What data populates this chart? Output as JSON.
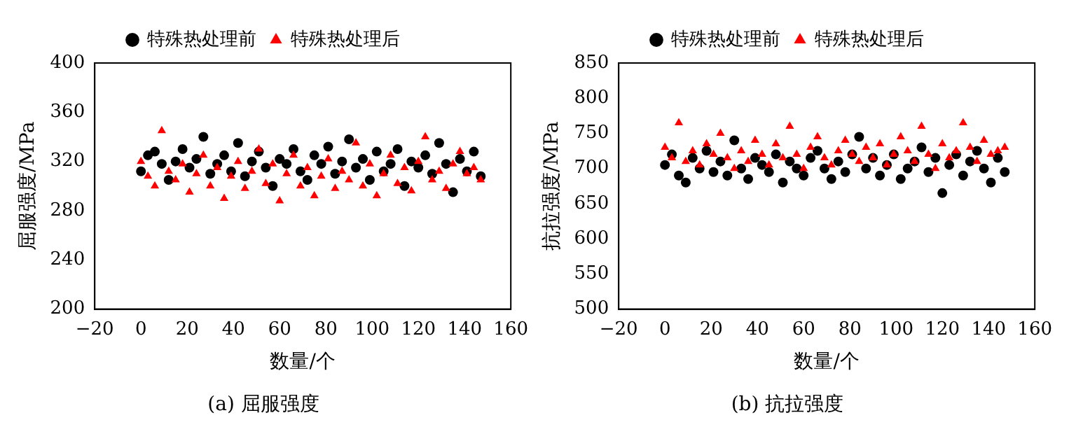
{
  "chart_data": [
    {
      "type": "scatter",
      "title": "(a) 屈服强度",
      "xlabel": "数量/个",
      "ylabel": "屈服强度/MPa",
      "xlim": [
        -20,
        160
      ],
      "xticks": [
        -20,
        0,
        20,
        40,
        60,
        80,
        100,
        120,
        140,
        160
      ],
      "ylim": [
        200,
        400
      ],
      "yticks": [
        200,
        240,
        280,
        320,
        360,
        400
      ],
      "grid": false,
      "legend": "top",
      "x": [
        0,
        3,
        6,
        9,
        12,
        15,
        18,
        21,
        24,
        27,
        30,
        33,
        36,
        39,
        42,
        45,
        48,
        51,
        54,
        57,
        60,
        63,
        66,
        69,
        72,
        75,
        78,
        81,
        84,
        87,
        90,
        93,
        96,
        99,
        102,
        105,
        108,
        111,
        114,
        117,
        120,
        123,
        126,
        129,
        132,
        135,
        138,
        141,
        144,
        147
      ],
      "series": [
        {
          "name": "特殊热处理前",
          "color": "#000000",
          "marker": "circle",
          "values": [
            312,
            325,
            328,
            318,
            305,
            320,
            330,
            315,
            322,
            340,
            310,
            318,
            325,
            312,
            335,
            308,
            320,
            328,
            315,
            300,
            322,
            318,
            330,
            312,
            305,
            325,
            318,
            332,
            310,
            320,
            338,
            315,
            322,
            305,
            328,
            312,
            318,
            330,
            300,
            320,
            315,
            325,
            310,
            335,
            318,
            295,
            322,
            312,
            328,
            308
          ]
        },
        {
          "name": "特殊热处理后",
          "color": "#ff0000",
          "marker": "triangle",
          "values": [
            320,
            308,
            300,
            345,
            312,
            305,
            318,
            295,
            310,
            325,
            300,
            315,
            290,
            308,
            320,
            298,
            312,
            330,
            302,
            318,
            288,
            310,
            325,
            300,
            315,
            292,
            308,
            322,
            298,
            312,
            305,
            335,
            300,
            318,
            292,
            310,
            325,
            302,
            315,
            296,
            320,
            340,
            305,
            312,
            298,
            318,
            328,
            310,
            315,
            305
          ]
        }
      ]
    },
    {
      "type": "scatter",
      "title": "(b) 抗拉强度",
      "xlabel": "数量/个",
      "ylabel": "抗拉强度/MPa",
      "xlim": [
        -20,
        160
      ],
      "xticks": [
        -20,
        0,
        20,
        40,
        60,
        80,
        100,
        120,
        140,
        160
      ],
      "ylim": [
        500,
        850
      ],
      "yticks": [
        500,
        550,
        600,
        650,
        700,
        750,
        800,
        850
      ],
      "grid": false,
      "legend": "top",
      "x": [
        0,
        3,
        6,
        9,
        12,
        15,
        18,
        21,
        24,
        27,
        30,
        33,
        36,
        39,
        42,
        45,
        48,
        51,
        54,
        57,
        60,
        63,
        66,
        69,
        72,
        75,
        78,
        81,
        84,
        87,
        90,
        93,
        96,
        99,
        102,
        105,
        108,
        111,
        114,
        117,
        120,
        123,
        126,
        129,
        132,
        135,
        138,
        141,
        144,
        147
      ],
      "series": [
        {
          "name": "特殊热处理前",
          "color": "#000000",
          "marker": "circle",
          "values": [
            705,
            720,
            690,
            680,
            715,
            700,
            725,
            695,
            710,
            690,
            740,
            700,
            685,
            715,
            705,
            695,
            720,
            680,
            710,
            700,
            690,
            715,
            725,
            700,
            685,
            710,
            695,
            720,
            745,
            700,
            715,
            690,
            705,
            720,
            685,
            700,
            710,
            730,
            695,
            715,
            665,
            705,
            720,
            690,
            710,
            725,
            700,
            680,
            715,
            695
          ]
        },
        {
          "name": "特殊热处理后",
          "color": "#ff0000",
          "marker": "triangle",
          "values": [
            730,
            715,
            765,
            710,
            725,
            705,
            735,
            720,
            750,
            715,
            700,
            725,
            710,
            740,
            720,
            705,
            735,
            715,
            760,
            720,
            700,
            730,
            745,
            715,
            705,
            725,
            740,
            720,
            710,
            730,
            715,
            735,
            705,
            720,
            745,
            725,
            710,
            760,
            720,
            700,
            735,
            715,
            725,
            765,
            730,
            710,
            740,
            720,
            725,
            730
          ]
        }
      ]
    }
  ]
}
